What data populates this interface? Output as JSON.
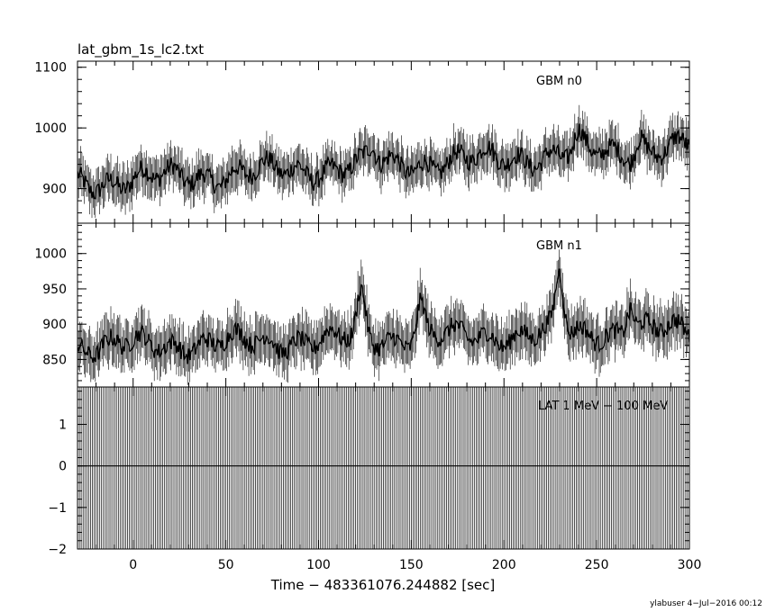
{
  "title": "lat_gbm_1s_lc2.txt",
  "xlabel": "Time − 483361076.244882 [sec]",
  "footer": "ylabuser  4−Jul−2016 00:12",
  "chart_data": [
    {
      "type": "line",
      "series": [
        {
          "name": "GBM n0"
        }
      ],
      "xlim": [
        -30,
        300
      ],
      "ylim": [
        843,
        1110
      ],
      "yticks": [
        900,
        1000,
        1100
      ],
      "ytick_labels": [
        "900",
        "1000",
        "1100"
      ],
      "baseline_from": 910,
      "baseline_to": 968,
      "wiggle_amp": 22,
      "err_half": 30,
      "bumps": [
        {
          "t": 129,
          "dy": 25
        },
        {
          "t": 240,
          "dy": 20
        },
        {
          "t": 273,
          "dy": 22
        }
      ]
    },
    {
      "type": "line",
      "series": [
        {
          "name": "GBM n1"
        }
      ],
      "xlim": [
        -30,
        300
      ],
      "ylim": [
        811,
        1043
      ],
      "yticks": [
        850,
        900,
        950,
        1000
      ],
      "ytick_labels": [
        "850",
        "900",
        "950",
        "1000"
      ],
      "baseline_from": 868,
      "baseline_to": 892,
      "wiggle_amp": 18,
      "err_half": 30,
      "bumps": [
        {
          "t": 123,
          "dy": 60
        },
        {
          "t": 155,
          "dy": 45
        },
        {
          "t": 230,
          "dy": 80
        },
        {
          "t": 268,
          "dy": 40
        }
      ]
    },
    {
      "type": "line",
      "series": [
        {
          "name": "LAT 1 MeV − 100 MeV"
        }
      ],
      "x": [
        -30,
        300
      ],
      "values": [
        0,
        0
      ],
      "xlim": [
        -30,
        300
      ],
      "ylim": [
        -2,
        1.9
      ],
      "yticks": [
        -2,
        -1,
        0,
        1
      ],
      "ytick_labels": [
        "−2",
        "−1",
        "0",
        "1"
      ],
      "xticks": [
        0,
        50,
        100,
        150,
        200,
        250,
        300
      ],
      "xtick_labels": [
        "0",
        "50",
        "100",
        "150",
        "200",
        "250",
        "300"
      ]
    }
  ]
}
